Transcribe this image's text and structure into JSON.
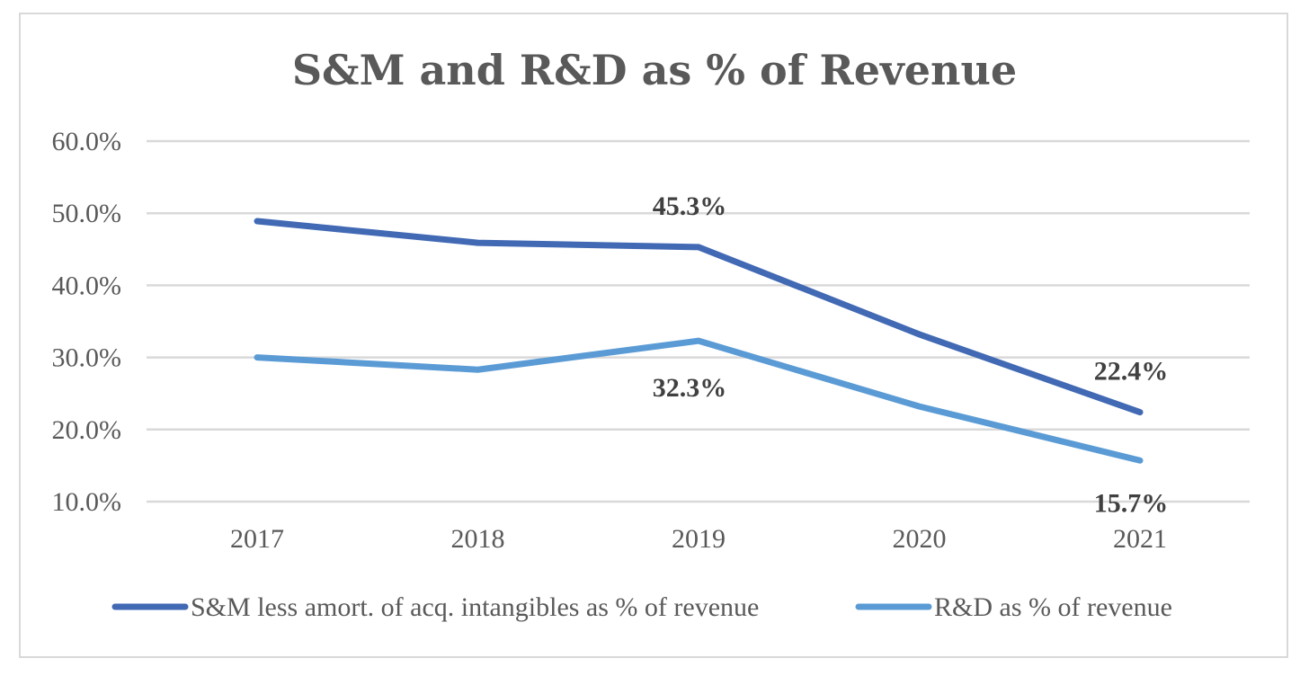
{
  "chart_data": {
    "type": "line",
    "title": "S&M and R&D as % of Revenue",
    "categories": [
      "2017",
      "2018",
      "2019",
      "2020",
      "2021"
    ],
    "ylim": [
      10,
      60
    ],
    "yticks": [
      "60.0%",
      "50.0%",
      "40.0%",
      "30.0%",
      "20.0%",
      "10.0%"
    ],
    "grid": true,
    "legend_position": "bottom",
    "series": [
      {
        "name": "S&M less amort. of acq. intangibles as % of revenue",
        "color": "#4169b4",
        "values": [
          48.9,
          45.9,
          45.3,
          33.2,
          22.4
        ],
        "labels": [
          null,
          null,
          "45.3%",
          null,
          "22.4%"
        ]
      },
      {
        "name": "R&D as % of revenue",
        "color": "#5b9bd5",
        "values": [
          30.0,
          28.3,
          32.3,
          23.2,
          15.7
        ],
        "labels": [
          null,
          null,
          "32.3%",
          null,
          "15.7%"
        ]
      }
    ]
  }
}
